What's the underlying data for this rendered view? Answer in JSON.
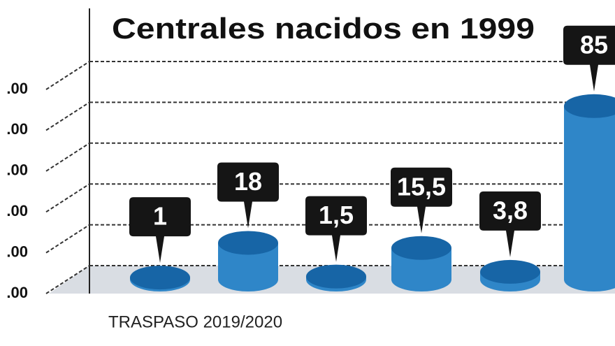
{
  "chart_data": {
    "type": "bar",
    "title": "Centrales nacidos en 1999",
    "x_label": "TRASPASO 2019/2020",
    "values": [
      1,
      18,
      1.5,
      15.5,
      3.8,
      85
    ],
    "value_labels": [
      "1",
      "18",
      "1,5",
      "15,5",
      "3,8",
      "85"
    ],
    "color": "#2f86c8",
    "ylim": [
      0,
      100
    ],
    "yticks": [
      {
        "value": 0,
        "label": ".00"
      },
      {
        "value": 20,
        "label": ".00"
      },
      {
        "value": 40,
        "label": ".00"
      },
      {
        "value": 60,
        "label": ".00"
      },
      {
        "value": 80,
        "label": ".00"
      },
      {
        "value": 100,
        "label": ".00"
      }
    ],
    "grid": true
  }
}
